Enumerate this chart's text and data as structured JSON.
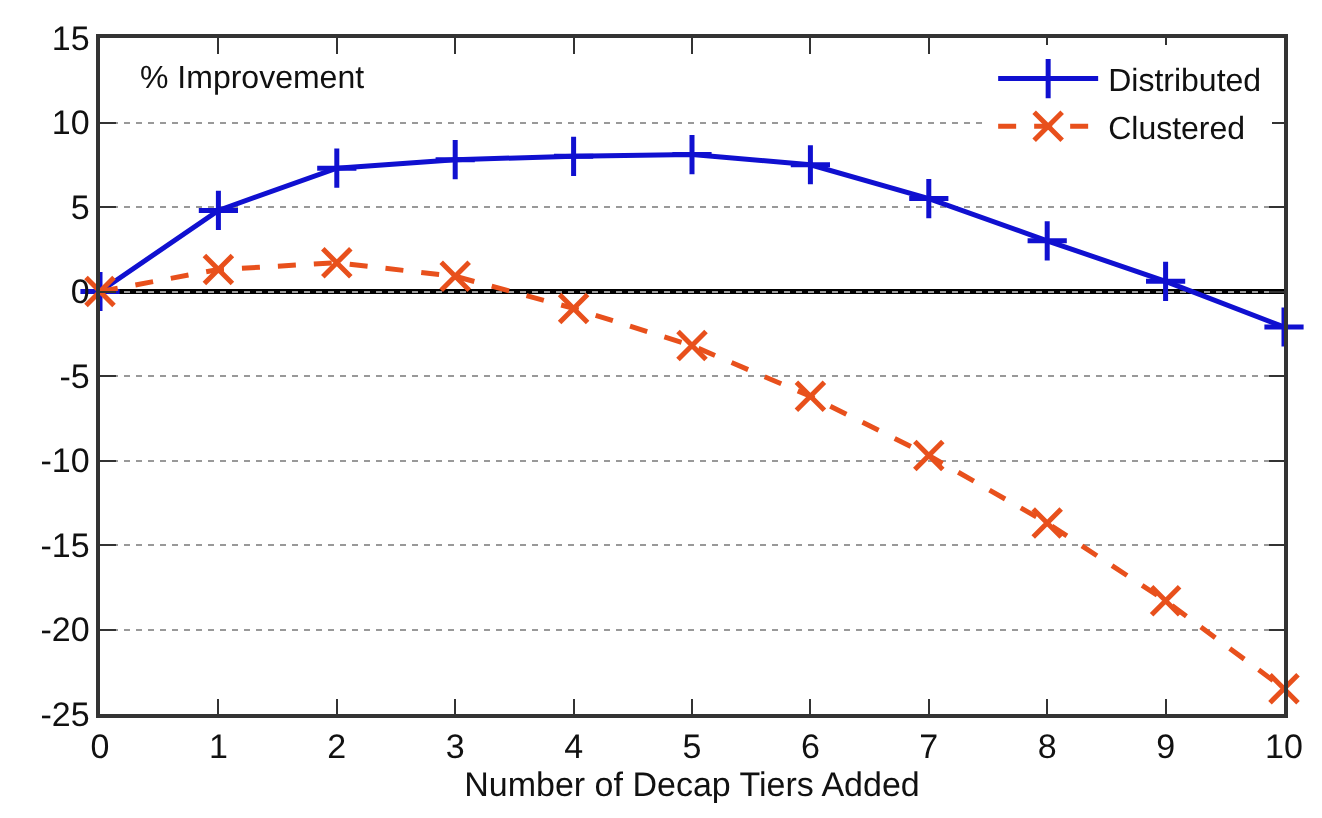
{
  "chart_data": {
    "type": "line",
    "xlabel": "Number of Decap Tiers Added",
    "annotations": [
      "% Improvement"
    ],
    "x": [
      0,
      1,
      2,
      3,
      4,
      5,
      6,
      7,
      8,
      9,
      10
    ],
    "series": [
      {
        "name": "Distributed",
        "color": "#1010d0",
        "marker": "cross",
        "line_style": "solid",
        "values": [
          0,
          4.8,
          7.3,
          7.8,
          8.0,
          8.1,
          7.5,
          5.5,
          3.0,
          0.6,
          -2.1
        ]
      },
      {
        "name": "Clustered",
        "color": "#e8501c",
        "marker": "x",
        "line_style": "dashed",
        "values": [
          0,
          1.3,
          1.7,
          0.9,
          -1.0,
          -3.2,
          -6.2,
          -9.7,
          -13.7,
          -18.3,
          -23.5
        ]
      }
    ],
    "xlim": [
      0,
      10
    ],
    "xticks": [
      0,
      1,
      2,
      3,
      4,
      5,
      6,
      7,
      8,
      9,
      10
    ],
    "ylim": [
      -25,
      15
    ],
    "yticks": [
      -25,
      -20,
      -15,
      -10,
      -5,
      0,
      5,
      10,
      15
    ],
    "ref_lines": [
      {
        "axis": "y",
        "value": 0,
        "color": "#000000"
      }
    ],
    "grid": "y",
    "legend": "top right"
  }
}
